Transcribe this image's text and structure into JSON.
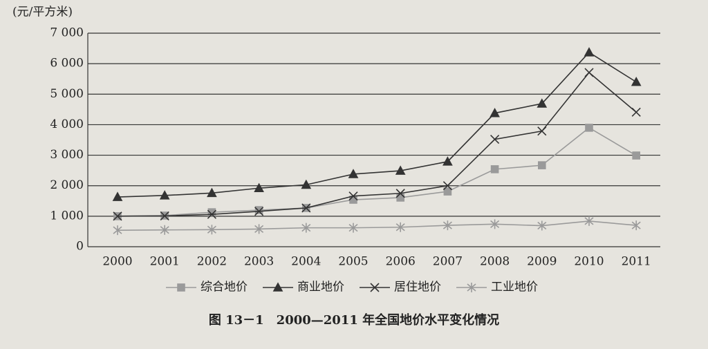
{
  "chart_data": {
    "type": "line",
    "y_axis_label": "(元/平方米)",
    "caption": "图 13－1　2000—2011 年全国地价水平变化情况",
    "categories": [
      "2000",
      "2001",
      "2002",
      "2003",
      "2004",
      "2005",
      "2006",
      "2007",
      "2008",
      "2009",
      "2010",
      "2011"
    ],
    "series": [
      {
        "name": "综合地价",
        "color": "#9a9a9a",
        "marker": "square",
        "values": [
          1000,
          1020,
          1130,
          1200,
          1270,
          1540,
          1610,
          1810,
          2540,
          2670,
          3900,
          2990
        ]
      },
      {
        "name": "商业地价",
        "color": "#333333",
        "marker": "triangle",
        "values": [
          1630,
          1680,
          1760,
          1920,
          2030,
          2380,
          2490,
          2790,
          4380,
          4690,
          6370,
          5400
        ]
      },
      {
        "name": "居住地价",
        "color": "#333333",
        "marker": "cross",
        "values": [
          1000,
          1010,
          1060,
          1160,
          1270,
          1660,
          1750,
          2000,
          3520,
          3790,
          5710,
          4410
        ]
      },
      {
        "name": "工业地价",
        "color": "#9a9a9a",
        "marker": "asterisk",
        "values": [
          540,
          550,
          560,
          580,
          620,
          620,
          640,
          700,
          740,
          690,
          840,
          700
        ]
      }
    ],
    "ylim": [
      0,
      7000
    ],
    "yticks": [
      0,
      {
        "value": 1000,
        "label": "1 000"
      },
      {
        "value": 2000,
        "label": "2 000"
      },
      {
        "value": 3000,
        "label": "3 000"
      },
      {
        "value": 4000,
        "label": "4 000"
      },
      {
        "value": 5000,
        "label": "5 000"
      },
      {
        "value": 6000,
        "label": "6 000"
      },
      {
        "value": 7000,
        "label": "7 000"
      }
    ],
    "grid": true,
    "legend": "bottom"
  }
}
